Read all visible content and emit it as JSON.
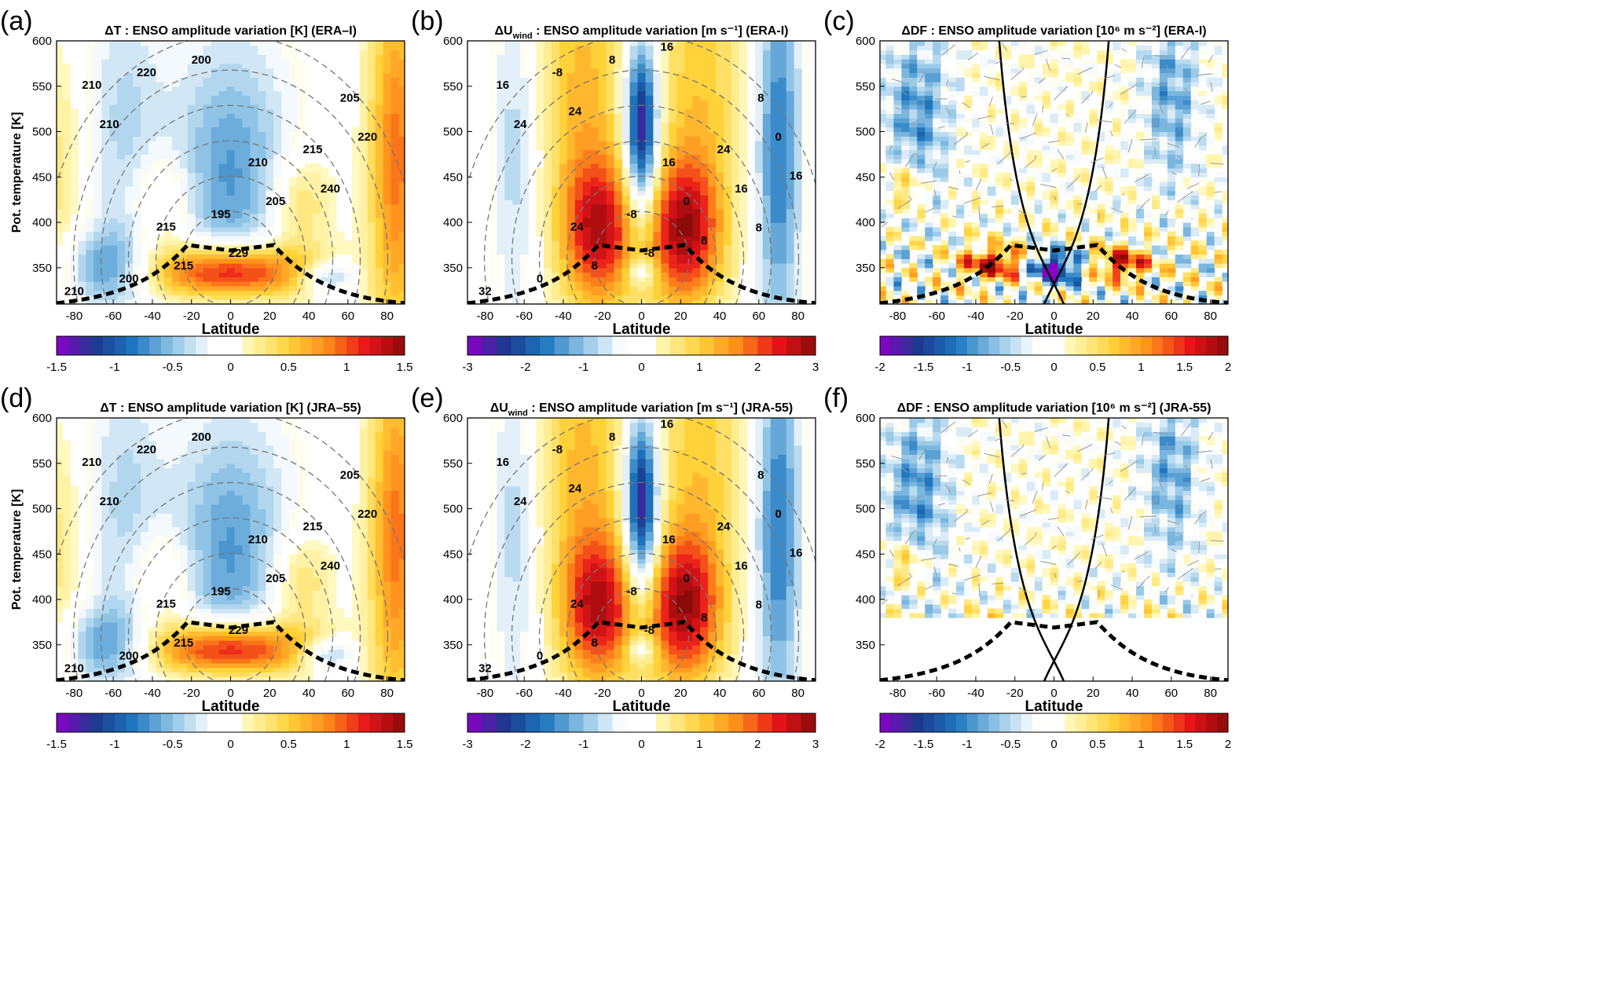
{
  "chart_data": [
    {
      "panel": "(a)",
      "type": "heatmap",
      "title": "ΔT : ENSO amplitude variation [K] (ERA–I)",
      "xlabel": "Latitude",
      "ylabel": "Pot. temperature [K]",
      "xlim": [
        -89,
        89
      ],
      "ylim": [
        310,
        600
      ],
      "xticks": [
        -80,
        -60,
        -40,
        -20,
        0,
        20,
        40,
        60,
        80
      ],
      "yticks": [
        350,
        400,
        450,
        500,
        550,
        600
      ],
      "colorbar": {
        "range": [
          -1.5,
          1.5
        ],
        "ticks": [
          "-1.5",
          "-1",
          "-0.5",
          "0",
          "0.5",
          "1",
          "1.5"
        ]
      },
      "contour_labels": [
        "210",
        "215",
        "210",
        "205",
        "200",
        "195",
        "215",
        "210",
        "215",
        "205",
        "220",
        "220",
        "229",
        "240",
        "210",
        "200"
      ],
      "field": "T"
    },
    {
      "panel": "(b)",
      "type": "heatmap",
      "title": "ΔU_wind : ENSO amplitude variation [m s⁻¹] (ERA-I)",
      "title_main": "ΔU",
      "title_sub": "wind",
      "title_rest": " : ENSO amplitude variation [m s⁻¹] (ERA-I)",
      "xlabel": "Latitude",
      "ylabel": "",
      "xlim": [
        -89,
        89
      ],
      "ylim": [
        310,
        600
      ],
      "xticks": [
        -80,
        -60,
        -40,
        -20,
        0,
        20,
        40,
        60,
        80
      ],
      "yticks": [
        350,
        400,
        450,
        500,
        550,
        600
      ],
      "colorbar": {
        "range": [
          -3,
          3
        ],
        "ticks": [
          "-3",
          "-2",
          "-1",
          "0",
          "1",
          "2",
          "3"
        ]
      },
      "contour_labels": [
        "32",
        "24",
        "16",
        "8",
        "0",
        "-8",
        "24",
        "16",
        "8",
        "0",
        "0",
        "-8",
        "-8",
        "16",
        "24",
        "8",
        "8",
        "16",
        "24",
        "16",
        "8"
      ],
      "field": "U"
    },
    {
      "panel": "(c)",
      "type": "heatmap",
      "title": "ΔDF : ENSO amplitude variation [10⁶ m s⁻²] (ERA-I)",
      "xlabel": "Latitude",
      "ylabel": "",
      "xlim": [
        -89,
        89
      ],
      "ylim": [
        310,
        600
      ],
      "xticks": [
        -80,
        -60,
        -40,
        -20,
        0,
        20,
        40,
        60,
        80
      ],
      "yticks": [
        350,
        400,
        450,
        500,
        550,
        600
      ],
      "colorbar": {
        "range": [
          -2,
          2
        ],
        "ticks": [
          "-2",
          "-1.5",
          "-1",
          "-0.5",
          "0",
          "0.5",
          "1",
          "1.5",
          "2"
        ]
      },
      "contour_labels": [],
      "field": "DF"
    },
    {
      "panel": "(d)",
      "type": "heatmap",
      "title": "ΔT : ENSO amplitude variation [K] (JRA–55)",
      "xlabel": "Latitude",
      "ylabel": "Pot. temperature [K]",
      "xlim": [
        -89,
        89
      ],
      "ylim": [
        310,
        600
      ],
      "xticks": [
        -80,
        -60,
        -40,
        -20,
        0,
        20,
        40,
        60,
        80
      ],
      "yticks": [
        350,
        400,
        450,
        500,
        550,
        600
      ],
      "colorbar": {
        "range": [
          -1.5,
          1.5
        ],
        "ticks": [
          "-1.5",
          "-1",
          "-0.5",
          "0",
          "0.5",
          "1",
          "1.5"
        ]
      },
      "contour_labels": [
        "210",
        "215",
        "210",
        "205",
        "200",
        "195",
        "215",
        "210",
        "215",
        "205",
        "220",
        "220",
        "229",
        "240",
        "210",
        "200"
      ],
      "field": "T"
    },
    {
      "panel": "(e)",
      "type": "heatmap",
      "title": "ΔU_wind : ENSO amplitude variation [m s⁻¹] (JRA-55)",
      "title_main": "ΔU",
      "title_sub": "wind",
      "title_rest": " : ENSO amplitude variation [m s⁻¹] (JRA-55)",
      "xlabel": "Latitude",
      "ylabel": "",
      "xlim": [
        -89,
        89
      ],
      "ylim": [
        310,
        600
      ],
      "xticks": [
        -80,
        -60,
        -40,
        -20,
        0,
        20,
        40,
        60,
        80
      ],
      "yticks": [
        350,
        400,
        450,
        500,
        550,
        600
      ],
      "colorbar": {
        "range": [
          -3,
          3
        ],
        "ticks": [
          "-3",
          "-2",
          "-1",
          "0",
          "1",
          "2",
          "3"
        ]
      },
      "contour_labels": [
        "32",
        "24",
        "16",
        "8",
        "0",
        "-8",
        "24",
        "16",
        "8",
        "0",
        "0",
        "-8",
        "-8",
        "16",
        "24",
        "8",
        "8",
        "16",
        "24",
        "16",
        "8"
      ],
      "field": "U"
    },
    {
      "panel": "(f)",
      "type": "heatmap",
      "title": "ΔDF : ENSO amplitude variation [10⁶ m s⁻²] (JRA-55)",
      "xlabel": "Latitude",
      "ylabel": "",
      "xlim": [
        -89,
        89
      ],
      "ylim": [
        310,
        600
      ],
      "xticks": [
        -80,
        -60,
        -40,
        -20,
        0,
        20,
        40,
        60,
        80
      ],
      "yticks": [
        350,
        400,
        450,
        500,
        550,
        600
      ],
      "colorbar": {
        "range": [
          -2,
          2
        ],
        "ticks": [
          "-2",
          "-1.5",
          "-1",
          "-0.5",
          "0",
          "0.5",
          "1",
          "1.5",
          "2"
        ]
      },
      "contour_labels": [],
      "field": "DF"
    }
  ],
  "colors": {
    "colormap": [
      "#8b00c8",
      "#1a3a8c",
      "#1f78c0",
      "#8fc4e6",
      "#ffffff",
      "#fff6b0",
      "#ffd23a",
      "#ff8c1a",
      "#e8141a",
      "#8b0a0a"
    ],
    "contour": "#777777",
    "tropopause": "#000000"
  }
}
